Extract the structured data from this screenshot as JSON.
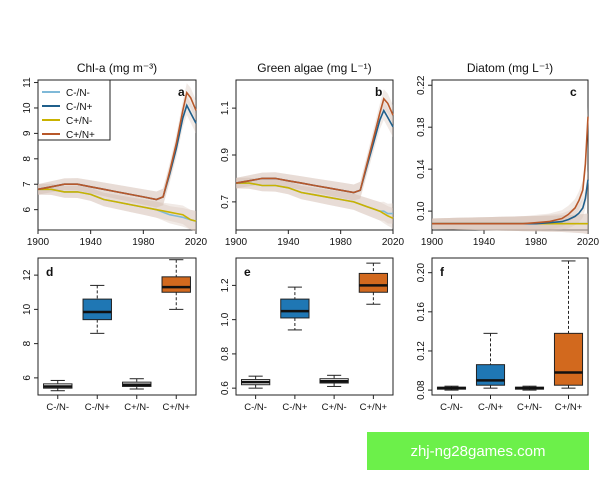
{
  "colors": {
    "C-/N-": "#7fb9d8",
    "C-/N+": "#1f5f8b",
    "C+/N-": "#c9b200",
    "C+/N+": "#b8582a",
    "box_C-/N+": "#1f77b4",
    "box_C+/N+": "#d2691e",
    "ribbon": "#d8c4b6"
  },
  "watermark": "zhj-ng28games.com",
  "chart_data": [
    {
      "type": "line",
      "panel": "a",
      "title": "Chl-a (mg m⁻³)",
      "xlim": [
        1900,
        2020
      ],
      "ylim": [
        5.2,
        11.1
      ],
      "x_ticks": [
        "1900",
        "1940",
        "1980",
        "2020"
      ],
      "y_ticks": [
        "6",
        "7",
        "8",
        "9",
        "10",
        "11"
      ],
      "legend": {
        "position": "top-left",
        "entries": [
          "C-/N-",
          "C-/N+",
          "C+/N-",
          "C+/N+"
        ]
      },
      "x": [
        1900,
        1910,
        1920,
        1930,
        1940,
        1950,
        1960,
        1970,
        1980,
        1990,
        1995,
        2000,
        2005,
        2010,
        2013,
        2016,
        2020
      ],
      "series": [
        {
          "name": "C-/N-",
          "values": [
            6.8,
            6.8,
            6.7,
            6.7,
            6.6,
            6.4,
            6.3,
            6.2,
            6.1,
            6.0,
            5.9,
            5.8,
            5.75,
            5.7,
            5.65,
            5.6,
            5.55
          ]
        },
        {
          "name": "C-/N+",
          "values": [
            6.8,
            6.9,
            7.0,
            7.0,
            6.9,
            6.8,
            6.7,
            6.6,
            6.5,
            6.4,
            6.5,
            7.4,
            8.4,
            9.6,
            10.1,
            9.8,
            9.4
          ]
        },
        {
          "name": "C+/N-",
          "values": [
            6.8,
            6.8,
            6.7,
            6.7,
            6.6,
            6.4,
            6.3,
            6.2,
            6.1,
            6.0,
            5.95,
            5.9,
            5.85,
            5.8,
            5.7,
            5.6,
            5.55
          ]
        },
        {
          "name": "C+/N+",
          "values": [
            6.8,
            6.9,
            7.0,
            7.0,
            6.9,
            6.8,
            6.7,
            6.6,
            6.5,
            6.4,
            6.5,
            7.5,
            8.6,
            9.9,
            10.6,
            10.4,
            9.9
          ]
        }
      ]
    },
    {
      "type": "line",
      "panel": "b",
      "title": "Green algae (mg L⁻¹)",
      "xlim": [
        1900,
        2020
      ],
      "ylim": [
        0.58,
        1.22
      ],
      "x_ticks": [
        "1900",
        "1940",
        "1980",
        "2020"
      ],
      "y_ticks": [
        "0.7",
        "0.9",
        "1.1"
      ],
      "x": [
        1900,
        1910,
        1920,
        1930,
        1940,
        1950,
        1960,
        1970,
        1980,
        1990,
        1995,
        2000,
        2005,
        2010,
        2013,
        2016,
        2020
      ],
      "series": [
        {
          "name": "C-/N-",
          "values": [
            0.78,
            0.78,
            0.77,
            0.77,
            0.76,
            0.74,
            0.73,
            0.72,
            0.71,
            0.7,
            0.69,
            0.68,
            0.67,
            0.66,
            0.66,
            0.65,
            0.65
          ]
        },
        {
          "name": "C-/N+",
          "values": [
            0.78,
            0.79,
            0.8,
            0.8,
            0.79,
            0.78,
            0.77,
            0.76,
            0.75,
            0.74,
            0.75,
            0.85,
            0.95,
            1.05,
            1.09,
            1.06,
            1.02
          ]
        },
        {
          "name": "C+/N-",
          "values": [
            0.78,
            0.78,
            0.77,
            0.77,
            0.76,
            0.74,
            0.73,
            0.72,
            0.71,
            0.7,
            0.69,
            0.68,
            0.67,
            0.66,
            0.65,
            0.64,
            0.63
          ]
        },
        {
          "name": "C+/N+",
          "values": [
            0.78,
            0.79,
            0.8,
            0.8,
            0.79,
            0.78,
            0.77,
            0.76,
            0.75,
            0.74,
            0.75,
            0.86,
            0.97,
            1.08,
            1.14,
            1.12,
            1.07
          ]
        }
      ]
    },
    {
      "type": "line",
      "panel": "c",
      "title": "Diatom (mg L⁻¹)",
      "xlim": [
        1900,
        2020
      ],
      "ylim": [
        0.082,
        0.225
      ],
      "x_ticks": [
        "1900",
        "1940",
        "1980",
        "2020"
      ],
      "y_ticks": [
        "0.10",
        "0.14",
        "0.18",
        "0.22"
      ],
      "x": [
        1900,
        1910,
        1920,
        1930,
        1940,
        1950,
        1960,
        1970,
        1980,
        1990,
        2000,
        2005,
        2010,
        2013,
        2016,
        2018,
        2020
      ],
      "series": [
        {
          "name": "C-/N-",
          "values": [
            0.088,
            0.088,
            0.088,
            0.088,
            0.088,
            0.088,
            0.088,
            0.088,
            0.088,
            0.088,
            0.088,
            0.088,
            0.088,
            0.088,
            0.088,
            0.088,
            0.088
          ]
        },
        {
          "name": "C-/N+",
          "values": [
            0.088,
            0.088,
            0.088,
            0.088,
            0.088,
            0.088,
            0.088,
            0.088,
            0.088,
            0.089,
            0.09,
            0.092,
            0.095,
            0.098,
            0.103,
            0.112,
            0.13
          ]
        },
        {
          "name": "C+/N-",
          "values": [
            0.088,
            0.088,
            0.088,
            0.088,
            0.088,
            0.088,
            0.088,
            0.088,
            0.088,
            0.088,
            0.088,
            0.088,
            0.088,
            0.088,
            0.088,
            0.088,
            0.088
          ]
        },
        {
          "name": "C+/N+",
          "values": [
            0.088,
            0.088,
            0.088,
            0.088,
            0.088,
            0.088,
            0.088,
            0.088,
            0.089,
            0.09,
            0.093,
            0.097,
            0.103,
            0.11,
            0.12,
            0.145,
            0.19
          ]
        }
      ]
    },
    {
      "type": "box",
      "panel": "d",
      "ylim": [
        5.0,
        13.0
      ],
      "y_ticks": [
        "6",
        "8",
        "10",
        "12"
      ],
      "categories": [
        "C-/N-",
        "C-/N+",
        "C+/N-",
        "C+/N+"
      ],
      "boxes": [
        {
          "min": 5.25,
          "q1": 5.4,
          "median": 5.5,
          "q3": 5.65,
          "max": 5.85
        },
        {
          "min": 8.6,
          "q1": 9.4,
          "median": 9.85,
          "q3": 10.6,
          "max": 11.4
        },
        {
          "min": 5.35,
          "q1": 5.5,
          "median": 5.6,
          "q3": 5.75,
          "max": 5.95
        },
        {
          "min": 10.0,
          "q1": 11.0,
          "median": 11.3,
          "q3": 11.9,
          "max": 12.9
        }
      ]
    },
    {
      "type": "box",
      "panel": "e",
      "ylim": [
        0.56,
        1.36
      ],
      "y_ticks": [
        "0.6",
        "0.8",
        "1.0",
        "1.2"
      ],
      "categories": [
        "C-/N-",
        "C-/N+",
        "C+/N-",
        "C+/N+"
      ],
      "boxes": [
        {
          "min": 0.6,
          "q1": 0.62,
          "median": 0.635,
          "q3": 0.65,
          "max": 0.67
        },
        {
          "min": 0.94,
          "q1": 1.01,
          "median": 1.05,
          "q3": 1.12,
          "max": 1.19
        },
        {
          "min": 0.61,
          "q1": 0.63,
          "median": 0.64,
          "q3": 0.655,
          "max": 0.675
        },
        {
          "min": 1.09,
          "q1": 1.16,
          "median": 1.2,
          "q3": 1.27,
          "max": 1.33
        }
      ]
    },
    {
      "type": "box",
      "panel": "f",
      "ylim": [
        0.075,
        0.215
      ],
      "y_ticks": [
        "0.08",
        "0.12",
        "0.16",
        "0.20"
      ],
      "categories": [
        "C-/N-",
        "C-/N+",
        "C+/N-",
        "C+/N+"
      ],
      "boxes": [
        {
          "min": 0.08,
          "q1": 0.081,
          "median": 0.082,
          "q3": 0.083,
          "max": 0.084
        },
        {
          "min": 0.082,
          "q1": 0.085,
          "median": 0.09,
          "q3": 0.106,
          "max": 0.138
        },
        {
          "min": 0.08,
          "q1": 0.081,
          "median": 0.082,
          "q3": 0.083,
          "max": 0.084
        },
        {
          "min": 0.082,
          "q1": 0.085,
          "median": 0.098,
          "q3": 0.138,
          "max": 0.212
        }
      ]
    }
  ]
}
